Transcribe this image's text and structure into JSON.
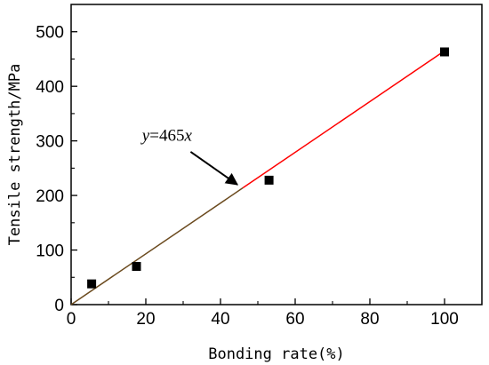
{
  "chart_data": {
    "type": "scatter",
    "title": "",
    "xlabel": "Bonding rate(%)",
    "ylabel": "Tensile strength/MPa",
    "xlim": [
      0,
      110
    ],
    "ylim": [
      0,
      550
    ],
    "xticks": [
      0,
      20,
      40,
      60,
      80,
      100
    ],
    "yticks": [
      0,
      100,
      200,
      300,
      400,
      500
    ],
    "grid": false,
    "series": [
      {
        "type": "scatter",
        "marker": "square",
        "color": "#000000",
        "points": [
          {
            "x": 5.5,
            "y": 38
          },
          {
            "x": 17.5,
            "y": 70
          },
          {
            "x": 53,
            "y": 228
          },
          {
            "x": 100,
            "y": 463
          }
        ]
      }
    ],
    "fit_line": {
      "slope": 4.65,
      "x_range": [
        0,
        100
      ],
      "color": "#ff0000"
    },
    "annotation": {
      "text_italic": "y",
      "text_mid": "=465",
      "text_end": "x",
      "text_at": {
        "x": 19,
        "y": 300
      },
      "arrow_from": {
        "x": 32,
        "y": 280
      },
      "arrow_to": {
        "x": 44.5,
        "y": 220
      }
    }
  }
}
